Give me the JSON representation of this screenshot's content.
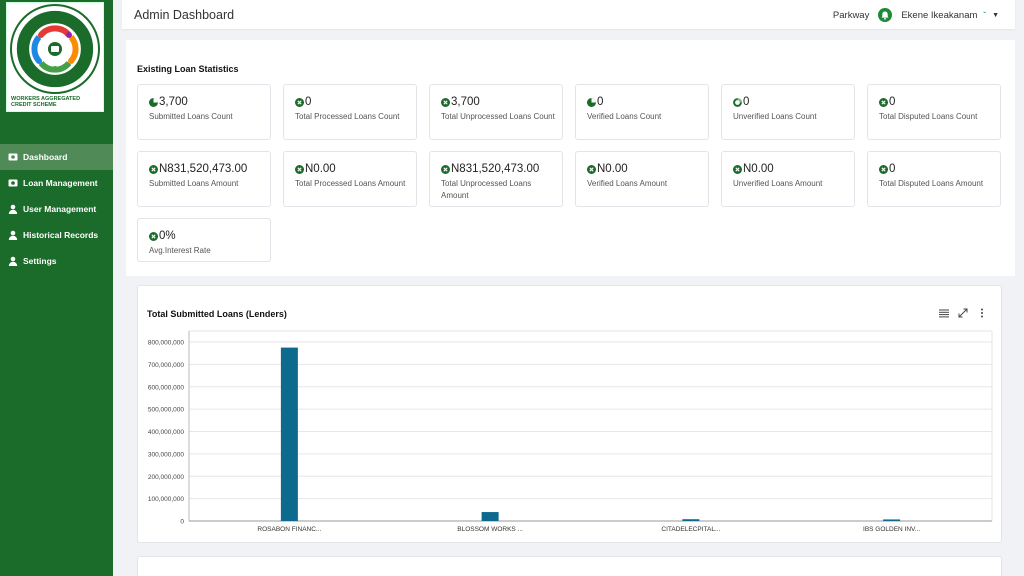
{
  "logo": {
    "ring_text": "WORKERS AGGREGATED CREDIT SCHEME",
    "caption_line1": "WORKERS AGGREGATED",
    "caption_line2": "CREDIT SCHEME",
    "colors": [
      "#1b6b2a",
      "#e53935",
      "#fb8c00",
      "#1e88e5",
      "#43a047",
      "#8e24aa"
    ]
  },
  "sidebar": {
    "items": [
      {
        "label": "Dashboard",
        "icon": "money-icon",
        "active": true
      },
      {
        "label": "Loan Management",
        "icon": "money-icon",
        "active": false
      },
      {
        "label": "User Management",
        "icon": "user-icon",
        "active": false
      },
      {
        "label": "Historical Records",
        "icon": "user-icon",
        "active": false
      },
      {
        "label": "Settings",
        "icon": "user-icon",
        "active": false
      }
    ]
  },
  "header": {
    "title": "Admin Dashboard",
    "org": "Parkway",
    "user": "Ekene Ikeakanam"
  },
  "stats": {
    "title": "Existing Loan Statistics",
    "cards": [
      {
        "value": "3,700",
        "label": "Submitted Loans Count",
        "icon": "pie-icon"
      },
      {
        "value": "0",
        "label": "Total Processed Loans Count",
        "icon": "close-circle-icon"
      },
      {
        "value": "3,700",
        "label": "Total Unprocessed Loans Count",
        "icon": "close-circle-icon"
      },
      {
        "value": "0",
        "label": "Verified Loans Count",
        "icon": "pie-icon"
      },
      {
        "value": "0",
        "label": "Unverified Loans Count",
        "icon": "ring-icon"
      },
      {
        "value": "0",
        "label": "Total Disputed Loans Count",
        "icon": "close-circle-icon"
      },
      {
        "value": "N831,520,473.00",
        "label": "Submitted Loans Amount",
        "icon": "close-circle-icon"
      },
      {
        "value": "N0.00",
        "label": "Total Processed Loans Amount",
        "icon": "close-circle-icon"
      },
      {
        "value": "N831,520,473.00",
        "label": "Total Unprocessed Loans Amount",
        "icon": "close-circle-icon"
      },
      {
        "value": "N0.00",
        "label": "Verified Loans Amount",
        "icon": "close-circle-icon"
      },
      {
        "value": "N0.00",
        "label": "Unverified Loans Amount",
        "icon": "close-circle-icon"
      },
      {
        "value": "0",
        "label": "Total Disputed Loans Amount",
        "icon": "close-circle-icon"
      },
      {
        "value": "0%",
        "label": "Avg.Interest Rate",
        "icon": "close-circle-icon"
      }
    ]
  },
  "chart_panel": {
    "title": "Total Submitted Loans (Lenders)",
    "tools": [
      "menu-lines-icon",
      "expand-icon",
      "more-vertical-icon"
    ]
  },
  "chart_data": {
    "type": "bar",
    "title": "Total Submitted Loans (Lenders)",
    "categories": [
      "ROSABON FINANC...",
      "BLOSSOM WORKS ...",
      "CITADELECPITAL...",
      "IBS GOLDEN INV..."
    ],
    "values": [
      775000000,
      40000000,
      8000000,
      7000000
    ],
    "yticks": [
      "0",
      "100,000,000",
      "200,000,000",
      "300,000,000",
      "400,000,000",
      "500,000,000",
      "600,000,000",
      "700,000,000",
      "800,000,000"
    ],
    "ylim": [
      0,
      800000000
    ],
    "grid": true,
    "bar_color": "#0d6a8e"
  }
}
